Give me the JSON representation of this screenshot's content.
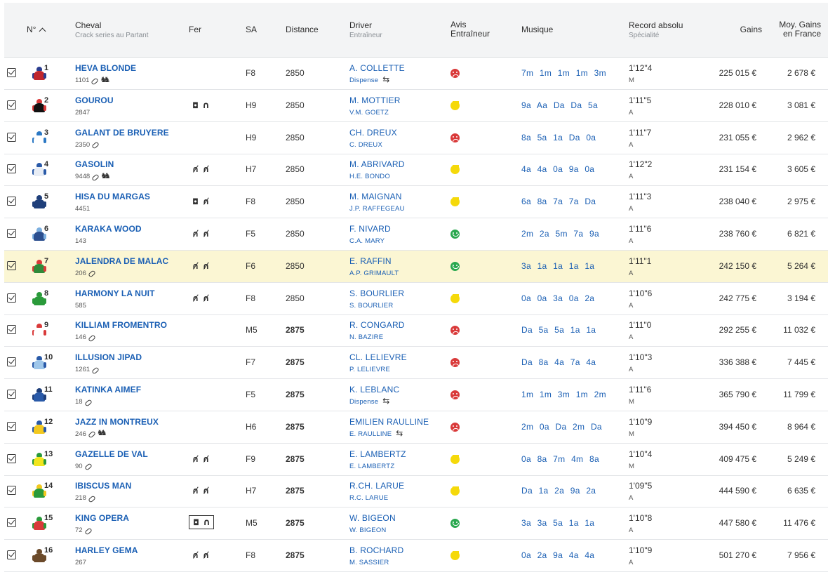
{
  "header": {
    "num": "N°",
    "cheval": "Cheval",
    "cheval_sub": "Crack series au Partant",
    "fer": "Fer",
    "sa": "SA",
    "distance": "Distance",
    "driver": "Driver",
    "driver_sub": "Entraîneur",
    "avis_line1": "Avis",
    "avis_line2": "Entraîneur",
    "musique": "Musique",
    "record": "Record absolu",
    "record_sub": "Spécialité",
    "gains": "Gains",
    "moy_line1": "Moy. Gains",
    "moy_line2": "en France"
  },
  "colors": {
    "link": "#1a5fb4",
    "highlight": "#fbf6d3",
    "bad": "#d93a3a",
    "mid": "#f5d90a",
    "good": "#2aa84f"
  },
  "rows": [
    {
      "num": "1",
      "name": "HEVA BLONDE",
      "crack": "1101",
      "meta_icons": [
        "link-icon",
        "horses-icon"
      ],
      "fer": "",
      "fer_icons": [],
      "sa": "F8",
      "distance": "2850",
      "distance_bold": false,
      "driver": "A. COLLETTE",
      "trainer": "Dispense",
      "swap": true,
      "avis": "bad",
      "musique": "7m  1m  1m  1m  3m",
      "record": "1'12\"4",
      "spec": "M",
      "gains": "225 015 €",
      "moy": "2 678 €",
      "silk": [
        "#c0262d",
        "#2a3d8f"
      ]
    },
    {
      "num": "2",
      "name": "GOUROU",
      "crack": "2847",
      "meta_icons": [],
      "fer_icons": [
        "pad-icon",
        "shoe-icon"
      ],
      "sa": "H9",
      "distance": "2850",
      "distance_bold": false,
      "driver": "M. MOTTIER",
      "trainer": "V.M. GOETZ",
      "swap": false,
      "avis": "mid",
      "musique": "9a  Aa  Da  Da  5a",
      "record": "1'11\"5",
      "spec": "A",
      "gains": "228 010 €",
      "moy": "3 081 €",
      "silk": [
        "#111111",
        "#d93a3a"
      ]
    },
    {
      "num": "3",
      "name": "GALANT DE BRUYERE",
      "crack": "2350",
      "meta_icons": [
        "link-icon"
      ],
      "fer_icons": [],
      "sa": "H9",
      "distance": "2850",
      "distance_bold": false,
      "driver": "CH. DREUX",
      "trainer": "C. DREUX",
      "swap": false,
      "avis": "bad",
      "musique": "8a  5a  1a  Da  0a",
      "record": "1'11\"7",
      "spec": "A",
      "gains": "231 055 €",
      "moy": "2 962 €",
      "silk": [
        "#ffffff",
        "#2b78c4"
      ]
    },
    {
      "num": "4",
      "name": "GASOLIN",
      "crack": "9448",
      "meta_icons": [
        "link-icon",
        "horses-icon"
      ],
      "fer_icons": [
        "barred-icon",
        "barred-icon"
      ],
      "sa": "H7",
      "distance": "2850",
      "distance_bold": false,
      "driver": "M. ABRIVARD",
      "trainer": "H.E. BONDO",
      "swap": false,
      "avis": "mid",
      "musique": "4a  4a  0a  9a  0a",
      "record": "1'12\"2",
      "spec": "A",
      "gains": "231 154 €",
      "moy": "3 605 €",
      "silk": [
        "#e8edf5",
        "#2a5aa8"
      ]
    },
    {
      "num": "5",
      "name": "HISA DU MARGAS",
      "crack": "4451",
      "meta_icons": [],
      "fer_icons": [
        "pad-icon",
        "barred-icon"
      ],
      "sa": "F8",
      "distance": "2850",
      "distance_bold": false,
      "driver": "M. MAIGNAN",
      "trainer": "J.P. RAFFEGEAU",
      "swap": false,
      "avis": "mid",
      "musique": "6a  8a  7a  7a  Da",
      "record": "1'11\"3",
      "spec": "A",
      "gains": "238 040 €",
      "moy": "2 975 €",
      "silk": [
        "#1f3f7a",
        "#1f3f7a"
      ]
    },
    {
      "num": "6",
      "name": "KARAKA WOOD",
      "crack": "143",
      "meta_icons": [],
      "fer_icons": [
        "barred-icon",
        "barred-icon"
      ],
      "sa": "F5",
      "distance": "2850",
      "distance_bold": false,
      "driver": "F. NIVARD",
      "trainer": "C.A. MARY",
      "swap": false,
      "avis": "good",
      "musique": "2m  2a  5m  7a  9a",
      "record": "1'11\"6",
      "spec": "A",
      "gains": "238 760 €",
      "moy": "6 821 €",
      "silk": [
        "#2c4f8f",
        "#7db0e0"
      ]
    },
    {
      "num": "7",
      "name": "JALENDRA DE MALAC",
      "crack": "206",
      "meta_icons": [
        "link-icon"
      ],
      "fer_icons": [
        "barred-icon",
        "barred-icon"
      ],
      "sa": "F6",
      "distance": "2850",
      "distance_bold": false,
      "driver": "E. RAFFIN",
      "trainer": "A.P. GRIMAULT",
      "swap": false,
      "avis": "good",
      "musique": "3a  1a  1a  1a  1a",
      "record": "1'11\"1",
      "spec": "A",
      "gains": "242 150 €",
      "moy": "5 264 €",
      "silk": [
        "#2f8a3a",
        "#d93a3a"
      ],
      "highlight": true
    },
    {
      "num": "8",
      "name": "HARMONY LA NUIT",
      "crack": "585",
      "meta_icons": [],
      "fer_icons": [
        "barred-icon",
        "barred-icon"
      ],
      "sa": "F8",
      "distance": "2850",
      "distance_bold": false,
      "driver": "S. BOURLIER",
      "trainer": "S. BOURLIER",
      "swap": false,
      "avis": "mid",
      "musique": "0a  0a  3a  0a  2a",
      "record": "1'10\"6",
      "spec": "A",
      "gains": "242 775 €",
      "moy": "3 194 €",
      "silk": [
        "#2a9a3a",
        "#2a9a3a"
      ]
    },
    {
      "num": "9",
      "name": "KILLIAM FROMENTRO",
      "crack": "146",
      "meta_icons": [
        "link-icon"
      ],
      "fer_icons": [],
      "sa": "M5",
      "distance": "2875",
      "distance_bold": true,
      "driver": "R. CONGARD",
      "trainer": "N. BAZIRE",
      "swap": false,
      "avis": "bad",
      "musique": "Da  5a  5a  1a  1a",
      "record": "1'11\"0",
      "spec": "A",
      "gains": "292 255 €",
      "moy": "11 032 €",
      "silk": [
        "#ffffff",
        "#d93a3a"
      ]
    },
    {
      "num": "10",
      "name": "ILLUSION JIPAD",
      "crack": "1261",
      "meta_icons": [
        "link-icon"
      ],
      "fer_icons": [],
      "sa": "F7",
      "distance": "2875",
      "distance_bold": true,
      "driver": "CL. LELIEVRE",
      "trainer": "P. LELIEVRE",
      "swap": false,
      "avis": "bad",
      "musique": "Da  8a  4a  7a  4a",
      "record": "1'10\"3",
      "spec": "A",
      "gains": "336 388 €",
      "moy": "7 445 €",
      "silk": [
        "#9fc7ea",
        "#2a5aa8"
      ]
    },
    {
      "num": "11",
      "name": "KATINKA AIMEF",
      "crack": "18",
      "meta_icons": [
        "link-icon"
      ],
      "fer_icons": [],
      "sa": "F5",
      "distance": "2875",
      "distance_bold": true,
      "driver": "K. LEBLANC",
      "trainer": "Dispense",
      "swap": true,
      "avis": "bad",
      "musique": "1m  1m  3m  1m  2m",
      "record": "1'11\"6",
      "spec": "M",
      "gains": "365 790 €",
      "moy": "11 799 €",
      "silk": [
        "#2a5aa8",
        "#1f3f7a"
      ]
    },
    {
      "num": "12",
      "name": "JAZZ IN MONTREUX",
      "crack": "246",
      "meta_icons": [
        "link-icon",
        "horses-icon"
      ],
      "fer_icons": [],
      "sa": "H6",
      "distance": "2875",
      "distance_bold": true,
      "driver": "EMILIEN RAULLINE",
      "trainer": "E. RAULLINE",
      "swap": true,
      "avis": "bad",
      "musique": "2m  0a  Da  2m  Da",
      "record": "1'10\"9",
      "spec": "M",
      "gains": "394 450 €",
      "moy": "8 964 €",
      "silk": [
        "#f2c81e",
        "#2a5aa8"
      ]
    },
    {
      "num": "13",
      "name": "GAZELLE DE VAL",
      "crack": "90",
      "meta_icons": [
        "link-icon"
      ],
      "fer_icons": [
        "barred-icon",
        "barred-icon"
      ],
      "sa": "F9",
      "distance": "2875",
      "distance_bold": true,
      "driver": "E. LAMBERTZ",
      "trainer": "E. LAMBERTZ",
      "swap": false,
      "avis": "mid",
      "musique": "0a  8a  7m  4m  8a",
      "record": "1'10\"4",
      "spec": "M",
      "gains": "409 475 €",
      "moy": "5 249 €",
      "silk": [
        "#f2e51e",
        "#2a9a3a"
      ]
    },
    {
      "num": "14",
      "name": "IBISCUS MAN",
      "crack": "218",
      "meta_icons": [
        "link-icon"
      ],
      "fer_icons": [
        "barred-icon",
        "barred-icon"
      ],
      "sa": "H7",
      "distance": "2875",
      "distance_bold": true,
      "driver": "R.CH. LARUE",
      "trainer": "R.C. LARUE",
      "swap": false,
      "avis": "mid",
      "musique": "Da  1a  2a  9a  2a",
      "record": "1'09\"5",
      "spec": "A",
      "gains": "444 590 €",
      "moy": "6 635 €",
      "silk": [
        "#2a9a3a",
        "#f2c81e"
      ]
    },
    {
      "num": "15",
      "name": "KING OPERA",
      "crack": "72",
      "meta_icons": [
        "link-icon"
      ],
      "fer_icons": [
        "pad-icon",
        "shoe-icon"
      ],
      "fer_boxed": true,
      "sa": "M5",
      "distance": "2875",
      "distance_bold": true,
      "driver": "W. BIGEON",
      "trainer": "W. BIGEON",
      "swap": false,
      "avis": "good",
      "musique": "3a  3a  5a  1a  1a",
      "record": "1'10\"8",
      "spec": "A",
      "gains": "447 580 €",
      "moy": "11 476 €",
      "silk": [
        "#d93a3a",
        "#2a9a3a"
      ]
    },
    {
      "num": "16",
      "name": "HARLEY GEMA",
      "crack": "267",
      "meta_icons": [],
      "fer_icons": [
        "barred-icon",
        "barred-icon"
      ],
      "sa": "F8",
      "distance": "2875",
      "distance_bold": true,
      "driver": "B. ROCHARD",
      "trainer": "M. SASSIER",
      "swap": false,
      "avis": "mid",
      "musique": "0a  2a  9a  4a  4a",
      "record": "1'10\"9",
      "spec": "A",
      "gains": "501 270 €",
      "moy": "7 956 €",
      "silk": [
        "#6b4a2a",
        "#6b4a2a"
      ]
    }
  ]
}
